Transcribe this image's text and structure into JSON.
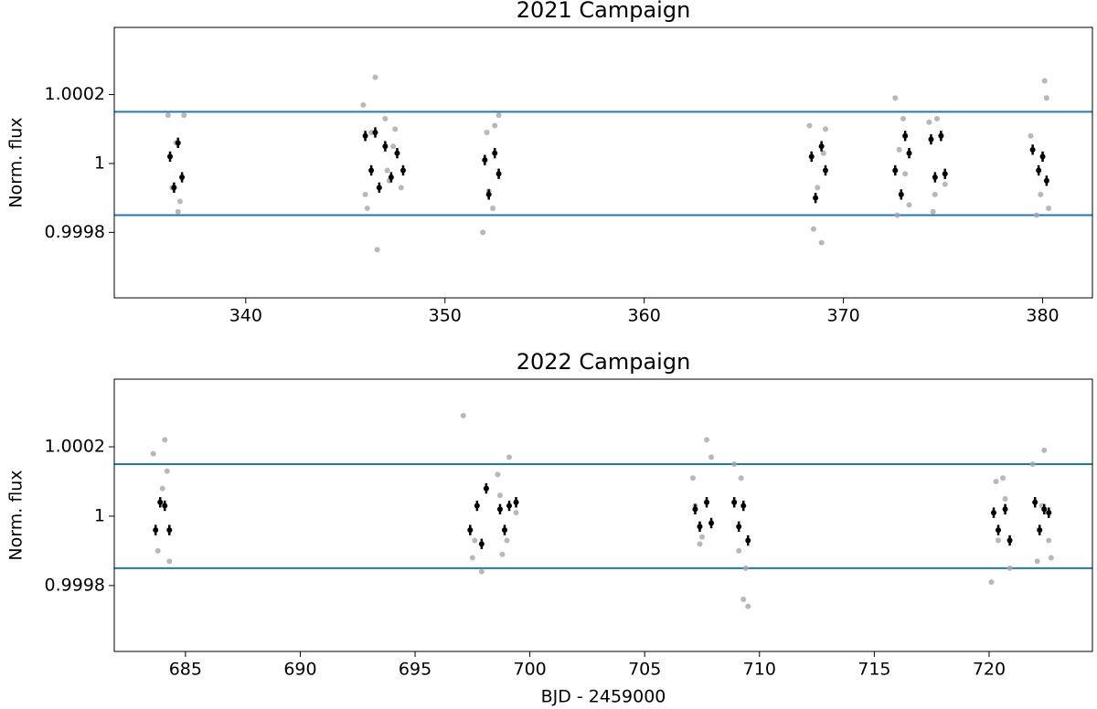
{
  "chart_data": [
    {
      "type": "scatter",
      "title": "2021 Campaign",
      "ylabel": "Norm. flux",
      "xlim": [
        333.4,
        382.5
      ],
      "ylim": [
        0.99961,
        1.000395
      ],
      "xticks": [
        340,
        350,
        360,
        370,
        380
      ],
      "yticks": [
        0.9998,
        1,
        1.0002
      ],
      "hlines": [
        1.00015,
        0.99985
      ],
      "hline_color": "#1f77b4",
      "series": [
        {
          "color": "#a6a6a6",
          "x": [
            336.1,
            336.3,
            336.5,
            336.7,
            336.9,
            336.6,
            345.9,
            346.1,
            346.5,
            346.6,
            346.3,
            346.0,
            347.0,
            347.2,
            347.5,
            347.8,
            347.4,
            347.1,
            351.9,
            352.1,
            352.4,
            352.7,
            352.5,
            352.2,
            368.3,
            368.5,
            368.9,
            369.1,
            368.7,
            369.0,
            372.6,
            372.7,
            373.0,
            373.3,
            372.8,
            373.1,
            374.3,
            374.5,
            374.9,
            375.1,
            374.7,
            374.6,
            379.4,
            379.7,
            380.1,
            380.2,
            379.9,
            380.3
          ],
          "values": [
            1.00014,
            0.99993,
            1.00006,
            0.99989,
            1.00014,
            0.99986,
            1.00017,
            0.99987,
            1.00025,
            0.99975,
            1.00009,
            0.99991,
            1.00013,
            0.99995,
            1.0001,
            0.99993,
            1.00005,
            0.99998,
            0.9998,
            1.00009,
            0.99987,
            1.00014,
            1.00011,
            0.99992,
            1.00011,
            0.99981,
            0.99977,
            1.0001,
            0.99993,
            1.00003,
            1.00019,
            0.99985,
            1.00013,
            0.99988,
            1.00004,
            0.99997,
            1.00012,
            0.99986,
            1.00008,
            0.99994,
            1.00013,
            0.99991,
            1.00008,
            0.99985,
            1.00024,
            1.00019,
            0.99991,
            0.99987
          ]
        },
        {
          "color": "#000000",
          "x": [
            336.2,
            336.4,
            336.6,
            336.8,
            346.0,
            346.3,
            346.5,
            346.7,
            347.0,
            347.3,
            347.6,
            347.9,
            352.0,
            352.2,
            352.5,
            352.7,
            368.4,
            368.6,
            368.9,
            369.1,
            372.6,
            372.9,
            373.1,
            373.3,
            374.4,
            374.6,
            374.9,
            375.1,
            379.5,
            379.8,
            380.0,
            380.2
          ],
          "values": [
            1.00002,
            0.99993,
            1.00006,
            0.99996,
            1.00008,
            0.99998,
            1.00009,
            0.99993,
            1.00005,
            0.99996,
            1.00003,
            0.99998,
            1.00001,
            0.99991,
            1.00003,
            0.99997,
            1.00002,
            0.9999,
            1.00005,
            0.99998,
            0.99998,
            0.99991,
            1.00008,
            1.00003,
            1.00007,
            0.99996,
            1.00008,
            0.99997,
            1.00004,
            0.99998,
            1.00002,
            0.99995
          ],
          "errors": [
            1.5e-05,
            1.5e-05,
            1.5e-05,
            1.5e-05,
            1.5e-05,
            1.5e-05,
            1.5e-05,
            1.5e-05,
            1.5e-05,
            1.5e-05,
            1.5e-05,
            1.5e-05,
            1.5e-05,
            1.5e-05,
            1.5e-05,
            1.5e-05,
            1.5e-05,
            1.5e-05,
            1.5e-05,
            1.5e-05,
            1.5e-05,
            1.5e-05,
            1.5e-05,
            1.5e-05,
            1.5e-05,
            1.5e-05,
            1.5e-05,
            1.5e-05,
            1.5e-05,
            1.5e-05,
            1.5e-05,
            1.5e-05
          ]
        }
      ]
    },
    {
      "type": "scatter",
      "title": "2022 Campaign",
      "ylabel": "Norm. flux",
      "xlabel": "BJD - 2459000",
      "xlim": [
        681.9,
        724.5
      ],
      "ylim": [
        0.99961,
        1.000395
      ],
      "xticks": [
        685,
        690,
        695,
        700,
        705,
        710,
        715,
        720
      ],
      "yticks": [
        0.9998,
        1,
        1.0002
      ],
      "hlines": [
        1.00015,
        0.99985
      ],
      "hline_color": "#1f77b4",
      "series": [
        {
          "color": "#a6a6a6",
          "x": [
            683.6,
            683.8,
            684.1,
            684.3,
            684.0,
            684.2,
            697.1,
            697.5,
            697.9,
            698.1,
            697.7,
            697.6,
            698.6,
            698.8,
            699.1,
            699.4,
            699.0,
            698.7,
            707.1,
            707.4,
            707.7,
            707.9,
            707.5,
            707.2,
            708.9,
            709.1,
            709.3,
            709.5,
            709.2,
            709.4,
            720.1,
            720.3,
            720.6,
            720.9,
            720.4,
            720.7,
            721.9,
            722.1,
            722.4,
            722.7,
            722.3,
            722.6
          ],
          "values": [
            1.00018,
            0.9999,
            1.00022,
            0.99987,
            1.00008,
            1.00013,
            1.00029,
            0.99988,
            0.99984,
            1.00008,
            1.00003,
            0.99993,
            1.00012,
            0.99989,
            1.00017,
            1.00001,
            0.99993,
            1.00006,
            1.00011,
            0.99992,
            1.00022,
            1.00017,
            0.99994,
            1.00003,
            1.00015,
            0.9999,
            0.99976,
            0.99974,
            1.00011,
            0.99985,
            0.99981,
            1.0001,
            1.00011,
            0.99985,
            0.99993,
            1.00005,
            1.00015,
            0.99987,
            1.00019,
            0.99988,
            1.00003,
            0.99993
          ]
        },
        {
          "color": "#000000",
          "x": [
            683.7,
            683.9,
            684.1,
            684.3,
            697.4,
            697.7,
            697.9,
            698.1,
            698.7,
            698.9,
            699.1,
            699.4,
            707.2,
            707.4,
            707.7,
            707.9,
            708.9,
            709.1,
            709.3,
            709.5,
            720.2,
            720.4,
            720.7,
            720.9,
            722.0,
            722.2,
            722.4,
            722.6
          ],
          "values": [
            0.99996,
            1.00004,
            1.00003,
            0.99996,
            0.99996,
            1.00003,
            0.99992,
            1.00008,
            1.00002,
            0.99996,
            1.00003,
            1.00004,
            1.00002,
            0.99997,
            1.00004,
            0.99998,
            1.00004,
            0.99997,
            1.00003,
            0.99993,
            1.00001,
            0.99996,
            1.00002,
            0.99993,
            1.00004,
            0.99996,
            1.00002,
            1.00001
          ],
          "errors": [
            1.5e-05,
            1.5e-05,
            1.5e-05,
            1.5e-05,
            1.5e-05,
            1.5e-05,
            1.5e-05,
            1.5e-05,
            1.5e-05,
            1.5e-05,
            1.5e-05,
            1.5e-05,
            1.5e-05,
            1.5e-05,
            1.5e-05,
            1.5e-05,
            1.5e-05,
            1.5e-05,
            1.5e-05,
            1.5e-05,
            1.5e-05,
            1.5e-05,
            1.5e-05,
            1.5e-05,
            1.5e-05,
            1.5e-05,
            1.5e-05,
            1.5e-05
          ]
        }
      ]
    }
  ]
}
